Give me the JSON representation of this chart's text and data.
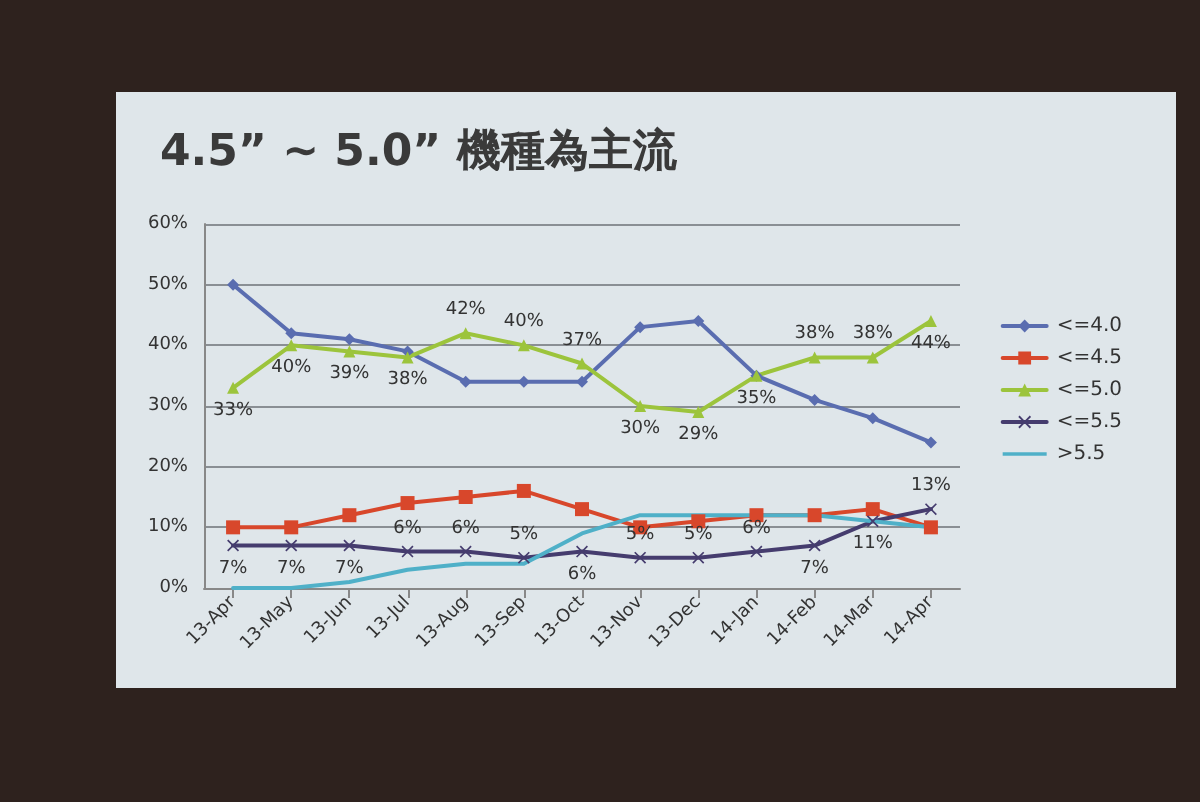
{
  "chart_data": {
    "type": "line",
    "title": "4.5” ~ 5.0” 機種為主流",
    "categories": [
      "13-Apr",
      "13-May",
      "13-Jun",
      "13-Jul",
      "13-Aug",
      "13-Sep",
      "13-Oct",
      "13-Nov",
      "13-Dec",
      "14-Jan",
      "14-Feb",
      "14-Mar",
      "14-Apr"
    ],
    "series": [
      {
        "name": "<=4.0",
        "color": "#5a6db0",
        "marker": "diamond",
        "values": [
          50,
          42,
          41,
          39,
          34,
          34,
          34,
          43,
          44,
          35,
          31,
          28,
          24
        ]
      },
      {
        "name": "<=4.5",
        "color": "#d8472b",
        "marker": "square",
        "values": [
          10,
          10,
          12,
          14,
          15,
          16,
          13,
          10,
          11,
          12,
          12,
          13,
          10
        ]
      },
      {
        "name": "<=5.0",
        "color": "#9cc43c",
        "marker": "triangle",
        "values": [
          33,
          40,
          39,
          38,
          42,
          40,
          37,
          30,
          29,
          35,
          38,
          38,
          44
        ],
        "value_labels": [
          "33%",
          "40%",
          "39%",
          "38%",
          "42%",
          "40%",
          "37%",
          "30%",
          "29%",
          "35%",
          "38%",
          "38%",
          "44%"
        ]
      },
      {
        "name": "<=5.5",
        "color": "#453c6e",
        "marker": "cross",
        "values": [
          7,
          7,
          7,
          6,
          6,
          5,
          6,
          5,
          5,
          6,
          7,
          11,
          13
        ],
        "value_labels": [
          "7%",
          "7%",
          "7%",
          "6%",
          "6%",
          "5%",
          "6%",
          "5%",
          "5%",
          "6%",
          "7%",
          "11%",
          "13%"
        ]
      },
      {
        "name": ">5.5",
        "color": "#4fb0c8",
        "marker": "none",
        "values": [
          0,
          0,
          1,
          3,
          4,
          4,
          9,
          12,
          12,
          12,
          12,
          11,
          10
        ]
      }
    ],
    "ylim": [
      0,
      60
    ],
    "yticks": [
      {
        "value": 0,
        "label": "0%"
      },
      {
        "value": 10,
        "label": "10%"
      },
      {
        "value": 20,
        "label": "20%"
      },
      {
        "value": 30,
        "label": "30%"
      },
      {
        "value": 40,
        "label": "40%"
      },
      {
        "value": 50,
        "label": "50%"
      },
      {
        "value": 60,
        "label": "60%"
      }
    ],
    "grid": "y",
    "legend": "right"
  }
}
